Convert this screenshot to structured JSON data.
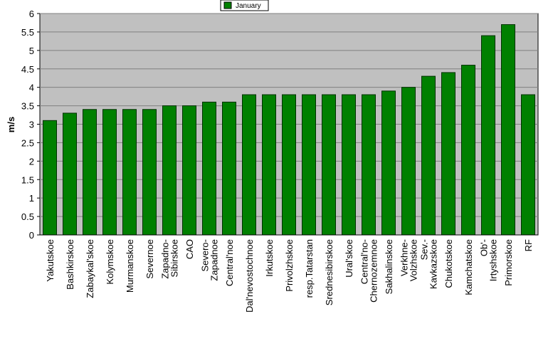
{
  "chart_data": {
    "type": "bar",
    "y_label": "m/s",
    "categories": [
      "Yakutskoe",
      "Bashkirskoe",
      "Zabaykal'skoe",
      "Kolymskoe",
      "Murmanskoe",
      "Severnoe",
      "Zapadno-\nSibirskoe",
      "CAO",
      "Severo-\nZapadnoe",
      "Central'noe",
      "Dal'nevostochnoe",
      "Irkutskoe",
      "Privolzhskoe",
      "resp.Tatarstan",
      "Srednesibirskoe",
      "Ural'skoe",
      "Central'no-\nChernozemnoe",
      "Sakhalinskoe",
      "Verkhne-\nVolzhskoe",
      "Sev.-\nKavkazskoe",
      "Chukotskoe",
      "Kamchatskoe",
      "Ob'-\nIrtyshskoe",
      "Primorskoe",
      "RF"
    ],
    "series": [
      {
        "name": "January",
        "color": "#008000",
        "values": [
          3.1,
          3.3,
          3.4,
          3.4,
          3.4,
          3.4,
          3.5,
          3.5,
          3.6,
          3.6,
          3.8,
          3.8,
          3.8,
          3.8,
          3.8,
          3.8,
          3.8,
          3.9,
          4.0,
          4.3,
          4.4,
          4.6,
          5.4,
          5.7,
          3.8
        ]
      }
    ],
    "ylim": [
      0,
      6
    ],
    "yticks": [
      0,
      0.5,
      1,
      1.5,
      2,
      2.5,
      3,
      3.5,
      4,
      4.5,
      5,
      5.5,
      6
    ],
    "grid": true
  }
}
